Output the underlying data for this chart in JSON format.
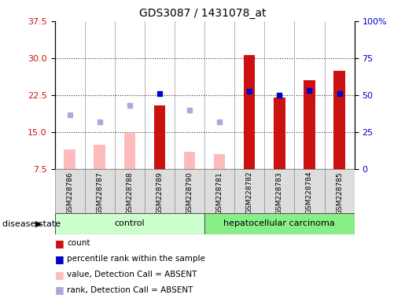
{
  "title": "GDS3087 / 1431078_at",
  "samples": [
    "GSM228786",
    "GSM228787",
    "GSM228788",
    "GSM228789",
    "GSM228790",
    "GSM228781",
    "GSM228782",
    "GSM228783",
    "GSM228784",
    "GSM228785"
  ],
  "red_bars": [
    null,
    null,
    null,
    20.5,
    null,
    null,
    30.7,
    22.0,
    25.5,
    27.5
  ],
  "pink_bars": [
    11.5,
    12.5,
    14.8,
    null,
    11.0,
    10.5,
    null,
    null,
    null,
    null
  ],
  "blue_squares": [
    null,
    null,
    null,
    22.8,
    null,
    null,
    23.3,
    22.5,
    23.5,
    22.8
  ],
  "lavender_squares": [
    18.5,
    17.0,
    20.5,
    null,
    19.5,
    17.0,
    null,
    null,
    null,
    null
  ],
  "ylim_left": [
    7.5,
    37.5
  ],
  "yticks_left": [
    7.5,
    15.0,
    22.5,
    30.0,
    37.5
  ],
  "ylim_right": [
    0,
    100
  ],
  "yticks_right": [
    0,
    25,
    50,
    75,
    100
  ],
  "ytick_labels_right": [
    "0",
    "25",
    "50",
    "75",
    "100%"
  ],
  "red_color": "#cc1111",
  "pink_color": "#ffbbbb",
  "blue_color": "#0000cc",
  "lavender_color": "#aaaadd",
  "control_bg": "#ccffcc",
  "cancer_bg": "#88ee88",
  "group_label_control": "control",
  "group_label_cancer": "hepatocellular carcinoma",
  "disease_state_label": "disease state",
  "legend_items": [
    "count",
    "percentile rank within the sample",
    "value, Detection Call = ABSENT",
    "rank, Detection Call = ABSENT"
  ],
  "legend_colors": [
    "#cc1111",
    "#0000cc",
    "#ffbbbb",
    "#aaaadd"
  ],
  "background_color": "#ffffff",
  "plot_bg": "#ffffff",
  "ylabel_left_color": "#cc1111",
  "ylabel_right_color": "#0000cc",
  "n_control": 5,
  "n_cancer": 5
}
